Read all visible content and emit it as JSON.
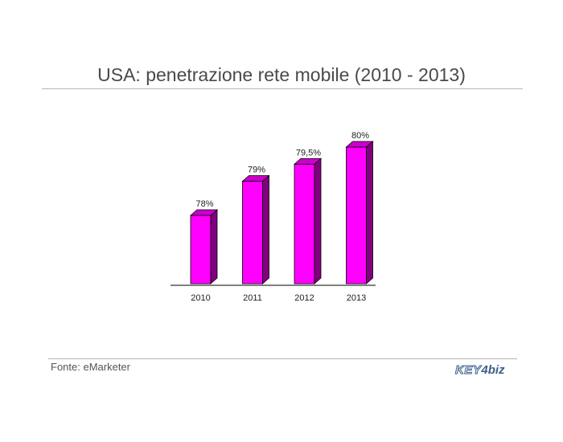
{
  "title": "USA: penetrazione rete mobile (2010 - 2013)",
  "source": "Fonte: eMarketer",
  "logo": {
    "key": "KEY",
    "four": "4",
    "biz": "biz"
  },
  "colors": {
    "bar_front": "#ff00ff",
    "bar_side": "#800080",
    "bar_top": "#cc00cc",
    "text": "#4a4a4a",
    "rule": "#b5b5b5"
  },
  "chart_data": {
    "type": "bar",
    "title": "",
    "xlabel": "",
    "ylabel": "",
    "categories": [
      "2010",
      "2011",
      "2012",
      "2013"
    ],
    "values": [
      78,
      79,
      79.5,
      80
    ],
    "data_labels": [
      "78%",
      "79%",
      "79,5%",
      "80%"
    ],
    "ylim": [
      76,
      80
    ],
    "grid": false,
    "legend": "none"
  }
}
